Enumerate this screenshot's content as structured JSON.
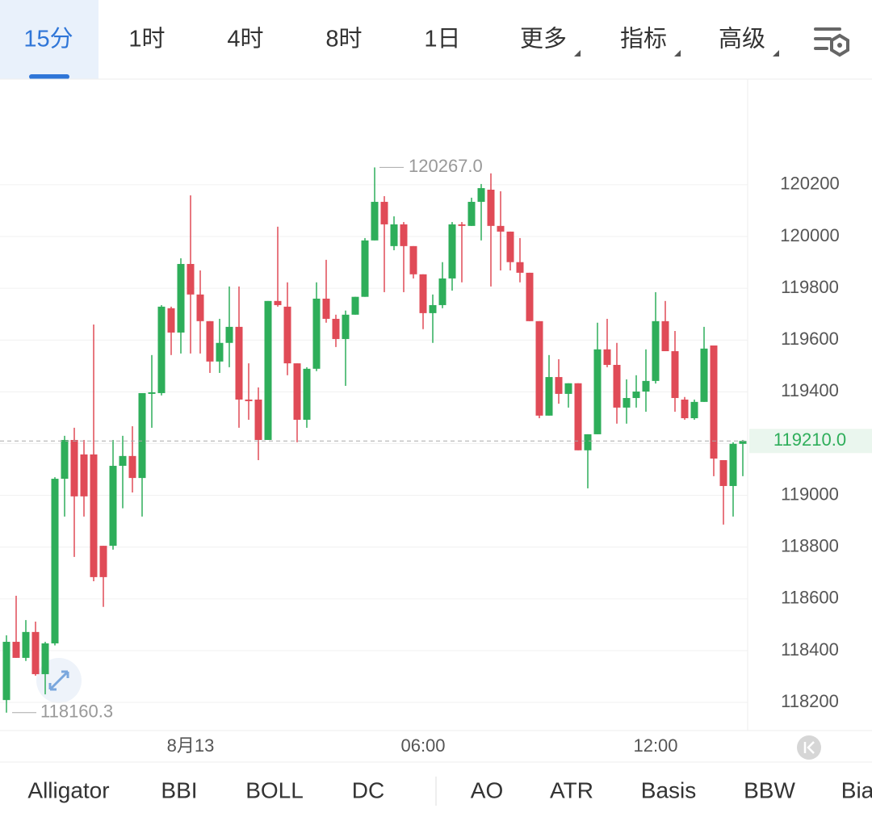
{
  "tabs": [
    "15分",
    "1时",
    "4时",
    "8时",
    "1日",
    "更多",
    "指标",
    "高级"
  ],
  "chart_data": {
    "type": "candlestick",
    "up_color": "#2eae5a",
    "down_color": "#e04b57",
    "grid": true,
    "categories": [
      null,
      null,
      null,
      null,
      null,
      null,
      null,
      null,
      null,
      null,
      null,
      null,
      null,
      null,
      null,
      null,
      null,
      null,
      null,
      "8月13",
      null,
      null,
      null,
      null,
      null,
      null,
      null,
      null,
      null,
      null,
      null,
      null,
      null,
      null,
      null,
      null,
      null,
      null,
      null,
      null,
      null,
      null,
      null,
      "06:00",
      null,
      null,
      null,
      null,
      null,
      null,
      null,
      null,
      null,
      null,
      null,
      null,
      null,
      null,
      null,
      null,
      null,
      null,
      null,
      null,
      null,
      null,
      null,
      "12:00",
      null,
      null,
      null,
      null,
      null,
      null,
      null,
      null,
      null
    ],
    "open": [
      118209,
      118434,
      118372,
      118472,
      118309,
      118428,
      119064,
      119214,
      119158,
      119158,
      118805,
      118805,
      119114,
      119152,
      119067,
      119392,
      119395,
      119723,
      119629,
      119894,
      119776,
      119673,
      119517,
      119589,
      119651,
      119370,
      119370,
      119214,
      119751,
      119729,
      119510,
      119292,
      119489,
      119760,
      119682,
      119604,
      119698,
      119767,
      119985,
      120134,
      119963,
      120047,
      119963,
      119854,
      119704,
      119735,
      119838,
      120047,
      120041,
      120134,
      120181,
      120041,
      120019,
      119901,
      119860,
      119673,
      119308,
      119457,
      119392,
      119433,
      119174,
      119236,
      119564,
      119504,
      119339,
      119376,
      119401,
      119442,
      119673,
      119557,
      119370,
      119298,
      119361,
      119579,
      119136,
      119036,
      119199
    ],
    "high": [
      118459,
      118612,
      118518,
      118512,
      118434,
      119070,
      119230,
      119261,
      119214,
      119660,
      118805,
      119214,
      119230,
      119267,
      119395,
      119542,
      119735,
      119729,
      119916,
      120159,
      119869,
      119673,
      119682,
      119807,
      119807,
      119510,
      119417,
      119751,
      120038,
      119823,
      119510,
      119495,
      119823,
      119910,
      119698,
      119714,
      119767,
      119994,
      120267,
      120156,
      120078,
      120056,
      119963,
      119854,
      119776,
      119901,
      120056,
      120056,
      120150,
      120203,
      120244,
      120175,
      120019,
      119994,
      119860,
      119673,
      119542,
      119526,
      119433,
      119433,
      119236,
      119667,
      119682,
      119589,
      119448,
      119464,
      119564,
      119785,
      119751,
      119635,
      119380,
      119370,
      119651,
      119579,
      119136,
      119205,
      119214
    ],
    "low": [
      118160.3,
      118372,
      118360,
      118303,
      118231,
      118420,
      118918,
      118762,
      118918,
      118668,
      118569,
      118790,
      118950,
      119011,
      118918,
      119261,
      119386,
      119542,
      119548,
      119548,
      119548,
      119473,
      119473,
      119495,
      119261,
      119292,
      119136,
      119214,
      119729,
      119464,
      119205,
      119261,
      119480,
      119667,
      119573,
      119423,
      119698,
      119767,
      119985,
      119785,
      119947,
      119785,
      119838,
      119642,
      119589,
      119723,
      119791,
      119823,
      120041,
      119985,
      119807,
      119869,
      119869,
      119823,
      119673,
      119298,
      119308,
      119354,
      119339,
      119174,
      119027,
      119236,
      119495,
      119277,
      119277,
      119339,
      119323,
      119432,
      119557,
      119323,
      119292,
      119292,
      119361,
      119074,
      118887,
      118918,
      119074
    ],
    "close": [
      118434,
      118372,
      118472,
      118309,
      118428,
      119064,
      119214,
      118996,
      118996,
      118684,
      118684,
      119114,
      119152,
      119067,
      119395,
      119398,
      119729,
      119629,
      119894,
      119776,
      119673,
      119517,
      119589,
      119651,
      119370,
      119364,
      119214,
      119751,
      119735,
      119510,
      119292,
      119489,
      119760,
      119682,
      119604,
      119698,
      119767,
      119985,
      120134,
      120047,
      120047,
      119963,
      119854,
      119704,
      119735,
      119838,
      120047,
      120041,
      120134,
      120187,
      120041,
      120019,
      119901,
      119860,
      119673,
      119308,
      119457,
      119392,
      119433,
      119174,
      119236,
      119564,
      119504,
      119339,
      119376,
      119401,
      119442,
      119673,
      119557,
      119376,
      119298,
      119361,
      119567,
      119142,
      119036,
      119199,
      119210
    ],
    "ylim": [
      118091,
      120602
    ],
    "yticks": [
      118200,
      118400,
      118600,
      118800,
      119000,
      119200,
      119400,
      119600,
      119800,
      120000,
      120200
    ],
    "max_label": {
      "value": 120267,
      "label": "120267.0"
    },
    "min_label": 118160.3,
    "last_price": {
      "value": 119210,
      "label": "119210.0"
    }
  },
  "indicators": [
    "Alligator",
    "BBI",
    "BOLL",
    "DC",
    "AO",
    "ATR",
    "Basis",
    "BBW",
    "Bia"
  ]
}
